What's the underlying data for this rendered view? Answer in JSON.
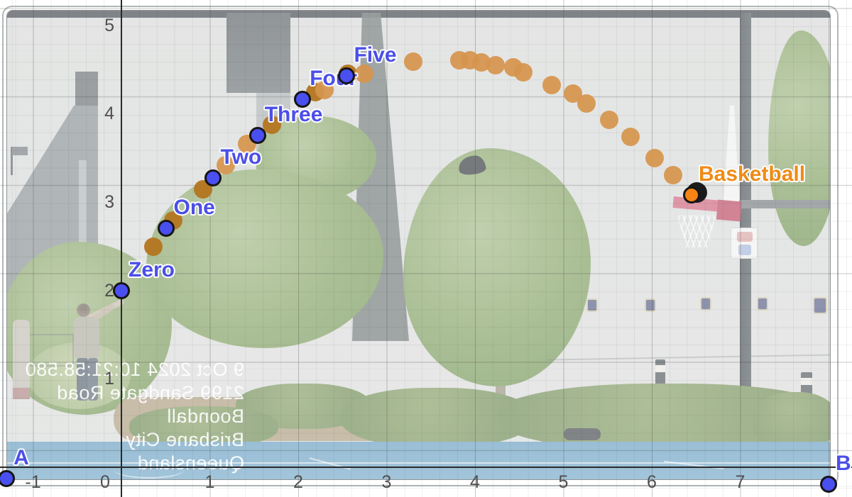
{
  "chart_data": {
    "type": "scatter",
    "title": "",
    "x_range": [
      -1.37,
      8.26
    ],
    "y_range": [
      -0.34,
      5.29
    ],
    "grid": {
      "major_step": 1,
      "minor_step": 0.2,
      "grid_on": true
    },
    "x_tick_labels": [
      "-1",
      "0",
      "1",
      "2",
      "3",
      "4",
      "5",
      "6",
      "7"
    ],
    "y_tick_labels": [
      "1",
      "2",
      "3",
      "4",
      "5"
    ],
    "x_tick_values": [
      -1,
      0,
      1,
      2,
      3,
      4,
      5,
      6,
      7
    ],
    "y_tick_values": [
      1,
      2,
      3,
      4,
      5
    ],
    "labeled_points": [
      {
        "label": "Zero",
        "x": 0.0,
        "y": 2.0,
        "color": "blue"
      },
      {
        "label": "One",
        "x": 0.51,
        "y": 2.7,
        "color": "blue"
      },
      {
        "label": "Two",
        "x": 1.04,
        "y": 3.27,
        "color": "blue"
      },
      {
        "label": "Three",
        "x": 1.54,
        "y": 3.75,
        "color": "blue"
      },
      {
        "label": "Four",
        "x": 2.05,
        "y": 4.16,
        "color": "blue"
      },
      {
        "label": "Five",
        "x": 2.55,
        "y": 4.43,
        "color": "blue"
      },
      {
        "label": "Basketball",
        "x": 6.45,
        "y": 3.08,
        "color": "orange"
      },
      {
        "label": "A",
        "x": -1.3,
        "y": -0.13,
        "color": "blue"
      },
      {
        "label": "B",
        "x": 8.0,
        "y": -0.19,
        "color": "blue"
      }
    ],
    "trajectory_dots": [
      {
        "x": 0.36,
        "y": 2.49,
        "dark": true
      },
      {
        "x": 0.59,
        "y": 2.79,
        "dark": true
      },
      {
        "x": 0.92,
        "y": 3.14,
        "dark": true
      },
      {
        "x": 1.18,
        "y": 3.42,
        "dark": false
      },
      {
        "x": 1.42,
        "y": 3.66,
        "dark": false
      },
      {
        "x": 1.7,
        "y": 3.87,
        "dark": true
      },
      {
        "x": 2.19,
        "y": 4.24,
        "dark": true
      },
      {
        "x": 2.3,
        "y": 4.27,
        "dark": false
      },
      {
        "x": 2.56,
        "y": 4.45,
        "dark": true
      },
      {
        "x": 2.75,
        "y": 4.45,
        "dark": false
      },
      {
        "x": 3.3,
        "y": 4.59,
        "dark": false
      },
      {
        "x": 3.82,
        "y": 4.6,
        "dark": false
      },
      {
        "x": 3.94,
        "y": 4.6,
        "dark": false
      },
      {
        "x": 4.07,
        "y": 4.58,
        "dark": false
      },
      {
        "x": 4.23,
        "y": 4.55,
        "dark": false
      },
      {
        "x": 4.43,
        "y": 4.52,
        "dark": false
      },
      {
        "x": 4.55,
        "y": 4.47,
        "dark": false
      },
      {
        "x": 4.87,
        "y": 4.32,
        "dark": false
      },
      {
        "x": 5.11,
        "y": 4.23,
        "dark": false
      },
      {
        "x": 5.26,
        "y": 4.11,
        "dark": false
      },
      {
        "x": 5.52,
        "y": 3.93,
        "dark": false
      },
      {
        "x": 5.76,
        "y": 3.74,
        "dark": false
      },
      {
        "x": 6.03,
        "y": 3.5,
        "dark": false
      },
      {
        "x": 6.24,
        "y": 3.3,
        "dark": false
      }
    ]
  },
  "video_overlay": {
    "mirrored": true,
    "timestamp_lines": [
      "9 Oct 2024 10:21:58.580",
      "2199 Sandgate Road",
      "Boondall",
      "Brisbane City",
      "Queensland"
    ]
  },
  "colors": {
    "point_blue": "#4a4ff0",
    "point_orange": "#f58414",
    "label_blue": "#4b4fe8",
    "label_orange": "#ef8b16",
    "trajectory_dot": "#d6944d",
    "trajectory_dot_dark": "#b4751f",
    "court_blue": "#8fb6cf",
    "backboard_red": "#d06b80"
  }
}
